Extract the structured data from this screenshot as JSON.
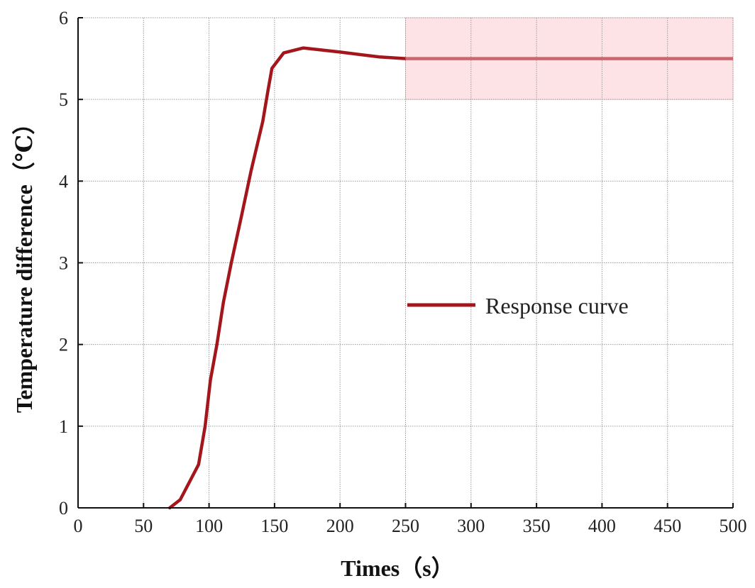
{
  "chart_data": {
    "type": "line",
    "title": "",
    "xlabel": "Times（s）",
    "ylabel": "Temperature difference（℃）",
    "xlim": [
      0,
      500
    ],
    "ylim": [
      0,
      6
    ],
    "xticks": [
      0,
      50,
      100,
      150,
      200,
      250,
      300,
      350,
      400,
      450,
      500
    ],
    "yticks": [
      0,
      1,
      2,
      3,
      4,
      5,
      6
    ],
    "grid": true,
    "legend": {
      "position": "center-right",
      "entries": [
        "Response curve"
      ]
    },
    "shaded_region": {
      "x": [
        250,
        500
      ],
      "y": [
        5,
        6
      ],
      "color": "#fde3e6"
    },
    "series": [
      {
        "name": "Response curve",
        "color": "#a3161c",
        "steady_color": "#c9676d",
        "x": [
          70,
          78,
          92,
          97,
          101,
          106,
          111,
          117,
          125,
          132,
          141,
          145,
          148,
          157,
          172,
          200,
          230,
          250,
          500
        ],
        "y": [
          0,
          0.1,
          0.53,
          1.0,
          1.56,
          2.0,
          2.52,
          3.0,
          3.59,
          4.12,
          4.73,
          5.11,
          5.38,
          5.57,
          5.63,
          5.58,
          5.52,
          5.5,
          5.5
        ]
      }
    ]
  }
}
